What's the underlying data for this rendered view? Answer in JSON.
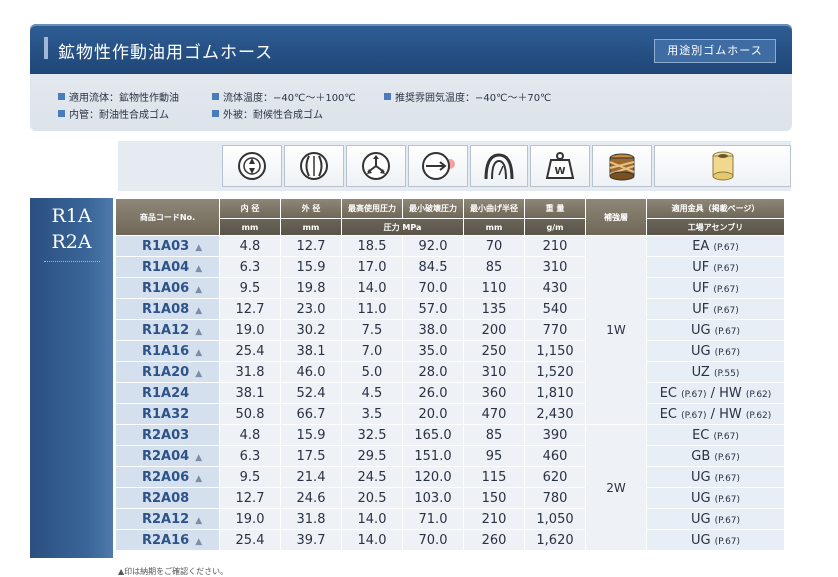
{
  "header": {
    "title": "鉱物性作動油用ゴムホース",
    "nav_button": "用途別ゴムホース"
  },
  "specs": [
    [
      "適用流体：鉱物性作動油",
      "流体温度：−40℃～＋100℃",
      "推奨雰囲気温度：−40℃～＋70℃"
    ],
    [
      "内管：耐油性合成ゴム",
      "外被：耐候性合成ゴム"
    ]
  ],
  "icons": [
    "pressure-gauge-icon",
    "burst-pressure-icon",
    "flow-icon",
    "bend-direction-icon",
    "bend-radius-icon",
    "weight-icon",
    "braid-reinforcement-icon",
    "fitting-icon"
  ],
  "icon_texts": {
    "weight": "W"
  },
  "side": {
    "line1": "R1A",
    "line2": "R2A"
  },
  "table": {
    "headers": {
      "code": "商品コードNo.",
      "inner": "内 径",
      "outer": "外 径",
      "max_pressure": "最高使用圧力",
      "min_burst": "最小破壊圧力",
      "min_bend": "最小曲げ半径",
      "weight": "重 量",
      "reinforcement": "補強層",
      "fittings": "適用金具（掲載ページ）"
    },
    "units": {
      "inner": "mm",
      "outer": "mm",
      "pressure": "圧力 MPa",
      "bend": "mm",
      "weight": "g/m",
      "fittings": "工場アセンブリ"
    },
    "rows": [
      {
        "code": "R1A03",
        "mark": "▲",
        "inner": "4.8",
        "outer": "12.7",
        "max": "18.5",
        "burst": "92.0",
        "bend": "70",
        "weight": "210",
        "fit": "EA",
        "fit_page": "(P.67)"
      },
      {
        "code": "R1A04",
        "mark": "▲",
        "inner": "6.3",
        "outer": "15.9",
        "max": "17.0",
        "burst": "84.5",
        "bend": "85",
        "weight": "310",
        "fit": "UF",
        "fit_page": "(P.67)"
      },
      {
        "code": "R1A06",
        "mark": "▲",
        "inner": "9.5",
        "outer": "19.8",
        "max": "14.0",
        "burst": "70.0",
        "bend": "110",
        "weight": "430",
        "fit": "UF",
        "fit_page": "(P.67)"
      },
      {
        "code": "R1A08",
        "mark": "▲",
        "inner": "12.7",
        "outer": "23.0",
        "max": "11.0",
        "burst": "57.0",
        "bend": "135",
        "weight": "540",
        "fit": "UF",
        "fit_page": "(P.67)"
      },
      {
        "code": "R1A12",
        "mark": "▲",
        "inner": "19.0",
        "outer": "30.2",
        "max": "7.5",
        "burst": "38.0",
        "bend": "200",
        "weight": "770",
        "fit": "UG",
        "fit_page": "(P.67)"
      },
      {
        "code": "R1A16",
        "mark": "▲",
        "inner": "25.4",
        "outer": "38.1",
        "max": "7.0",
        "burst": "35.0",
        "bend": "250",
        "weight": "1,150",
        "fit": "UG",
        "fit_page": "(P.67)"
      },
      {
        "code": "R1A20",
        "mark": "▲",
        "inner": "31.8",
        "outer": "46.0",
        "max": "5.0",
        "burst": "28.0",
        "bend": "310",
        "weight": "1,520",
        "fit": "UZ",
        "fit_page": "(P.55)"
      },
      {
        "code": "R1A24",
        "mark": "",
        "inner": "38.1",
        "outer": "52.4",
        "max": "4.5",
        "burst": "26.0",
        "bend": "360",
        "weight": "1,810",
        "fit": "EC",
        "fit_page": "(P.67)",
        "fit2": "HW",
        "fit2_page": "(P.62)"
      },
      {
        "code": "R1A32",
        "mark": "",
        "inner": "50.8",
        "outer": "66.7",
        "max": "3.5",
        "burst": "20.0",
        "bend": "470",
        "weight": "2,430",
        "fit": "EC",
        "fit_page": "(P.67)",
        "fit2": "HW",
        "fit2_page": "(P.62)"
      },
      {
        "code": "R2A03",
        "mark": "",
        "inner": "4.8",
        "outer": "15.9",
        "max": "32.5",
        "burst": "165.0",
        "bend": "85",
        "weight": "390",
        "fit": "EC",
        "fit_page": "(P.67)"
      },
      {
        "code": "R2A04",
        "mark": "▲",
        "inner": "6.3",
        "outer": "17.5",
        "max": "29.5",
        "burst": "151.0",
        "bend": "95",
        "weight": "460",
        "fit": "GB",
        "fit_page": "(P.67)"
      },
      {
        "code": "R2A06",
        "mark": "▲",
        "inner": "9.5",
        "outer": "21.4",
        "max": "24.5",
        "burst": "120.0",
        "bend": "115",
        "weight": "620",
        "fit": "UG",
        "fit_page": "(P.67)"
      },
      {
        "code": "R2A08",
        "mark": "",
        "inner": "12.7",
        "outer": "24.6",
        "max": "20.5",
        "burst": "103.0",
        "bend": "150",
        "weight": "780",
        "fit": "UG",
        "fit_page": "(P.67)"
      },
      {
        "code": "R2A12",
        "mark": "▲",
        "inner": "19.0",
        "outer": "31.8",
        "max": "14.0",
        "burst": "71.0",
        "bend": "210",
        "weight": "1,050",
        "fit": "UG",
        "fit_page": "(P.67)"
      },
      {
        "code": "R2A16",
        "mark": "▲",
        "inner": "25.4",
        "outer": "39.7",
        "max": "14.0",
        "burst": "70.0",
        "bend": "260",
        "weight": "1,620",
        "fit": "UG",
        "fit_page": "(P.67)"
      }
    ],
    "reinforcement_groups": [
      {
        "label": "1W",
        "span": 9
      },
      {
        "label": "2W",
        "span": 6
      }
    ]
  },
  "footnote": "▲印は納期をご確認ください。"
}
